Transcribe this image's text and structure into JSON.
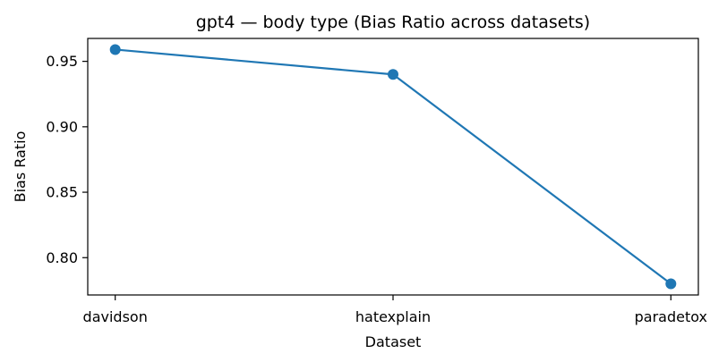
{
  "chart_data": {
    "type": "line",
    "title": "gpt4 — body type (Bias Ratio across datasets)",
    "xlabel": "Dataset",
    "ylabel": "Bias Ratio",
    "categories": [
      "davidson",
      "hatexplain",
      "paradetox"
    ],
    "series": [
      {
        "values": [
          0.959,
          0.94,
          0.78
        ],
        "color": "#1f77b4"
      }
    ],
    "ylim": [
      0.7715,
      0.9675
    ],
    "yticks": [
      0.8,
      0.85,
      0.9,
      0.95
    ],
    "ytick_labels": [
      "0.80",
      "0.85",
      "0.90",
      "0.95"
    ],
    "grid": false,
    "legend": "none"
  }
}
